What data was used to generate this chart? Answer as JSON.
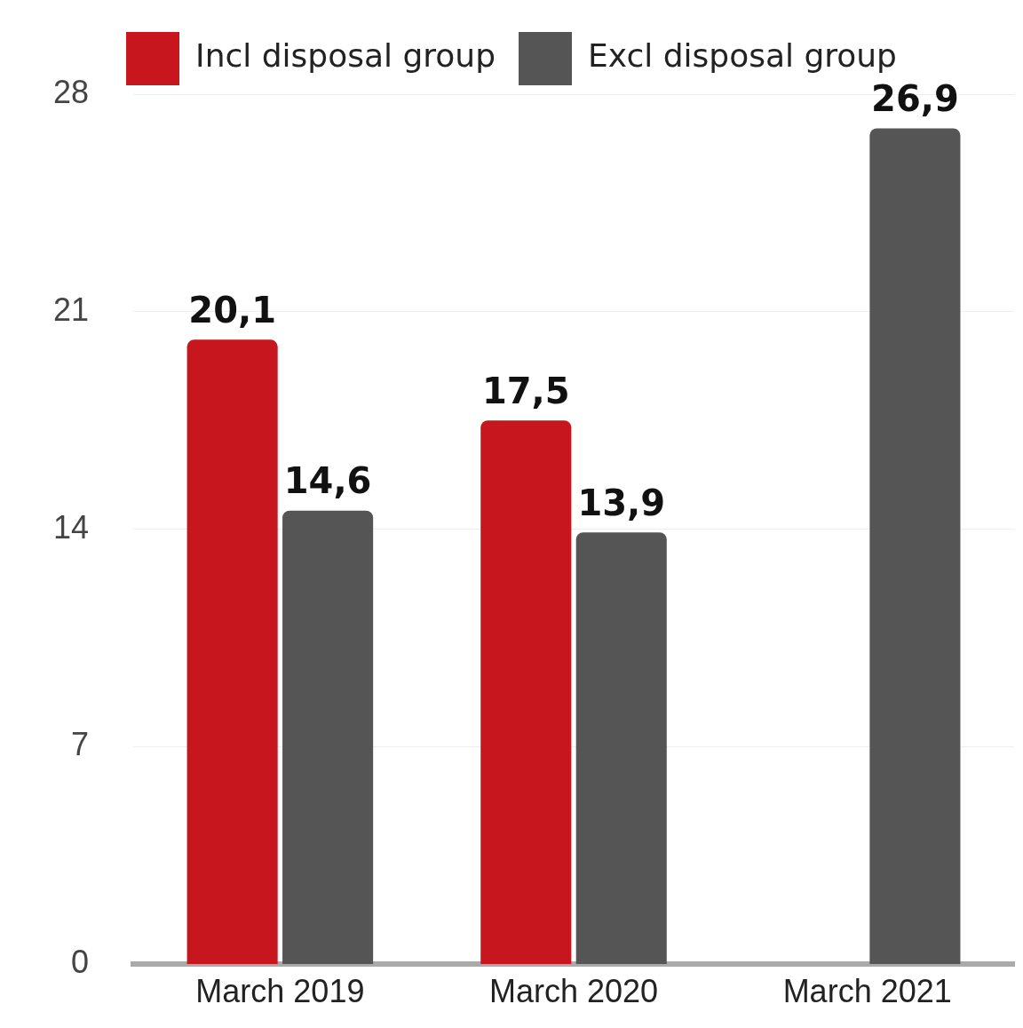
{
  "chart_data": {
    "type": "bar",
    "categories": [
      "March 2019",
      "March 2020",
      "March 2021"
    ],
    "series": [
      {
        "name": "Incl disposal group",
        "color": "#c8161e",
        "values": [
          20.1,
          17.5,
          null
        ],
        "value_labels": [
          "20,1",
          "17,5",
          null
        ]
      },
      {
        "name": "Excl disposal group",
        "color": "#555555",
        "values": [
          14.6,
          13.9,
          26.9
        ],
        "value_labels": [
          "14,6",
          "13,9",
          "26,9"
        ]
      }
    ],
    "ylim": [
      0,
      28
    ],
    "yticks": [
      0,
      7,
      14,
      21,
      28
    ],
    "grid": "y",
    "legend": "top"
  }
}
